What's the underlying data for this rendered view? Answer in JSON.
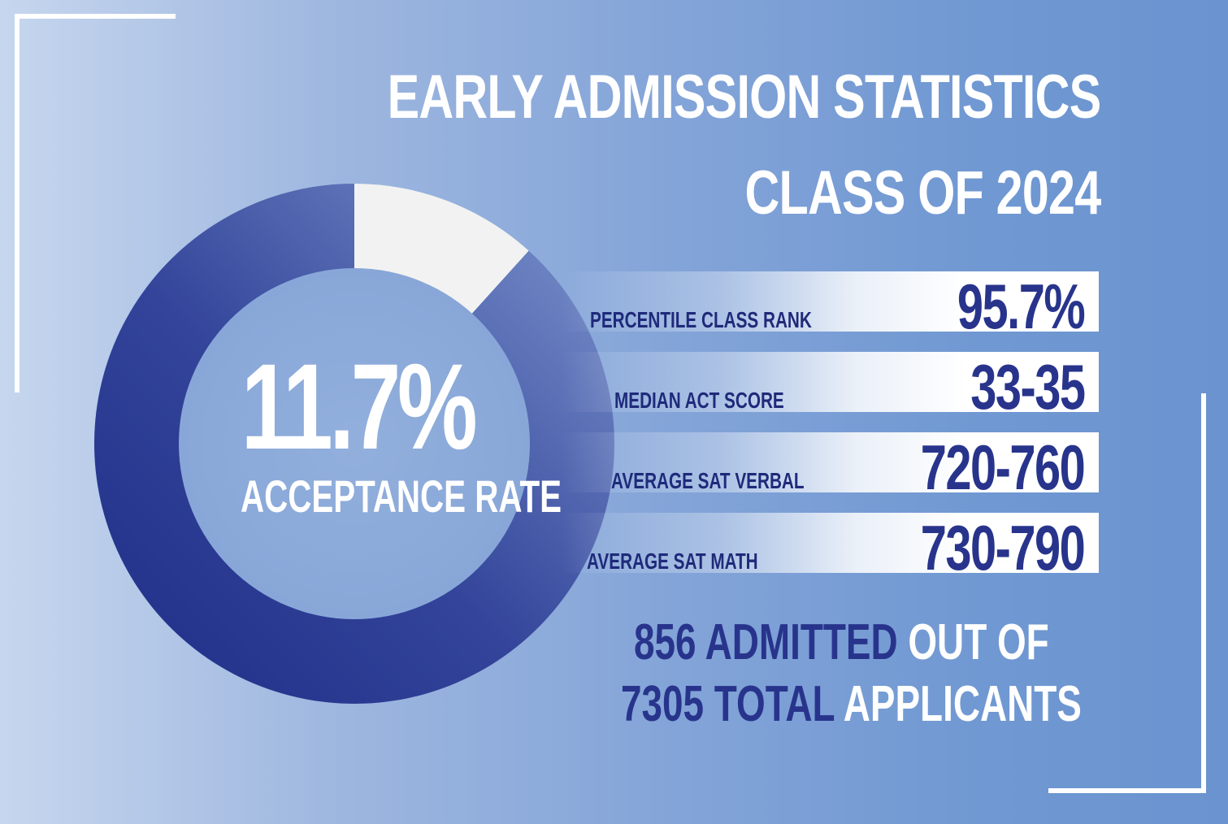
{
  "title": {
    "line1": "EARLY ADMISSION STATISTICS",
    "line2": "CLASS OF 2024"
  },
  "chart_data": {
    "type": "pie",
    "variant": "donut",
    "slices": [
      {
        "name": "",
        "value": 11.7,
        "color": "#f2f2f2"
      },
      {
        "name": "",
        "value": 88.3,
        "color": "#2a3990"
      }
    ],
    "center_value": "11.7%",
    "center_label": "ACCEPTANCE RATE"
  },
  "stats": [
    {
      "label": "PERCENTILE CLASS RANK",
      "value": "95.7%"
    },
    {
      "label": "MEDIAN ACT SCORE",
      "value": "33-35"
    },
    {
      "label": "AVERAGE SAT VERBAL",
      "value": "720-760"
    },
    {
      "label": "AVERAGE SAT MATH",
      "value": "730-790"
    }
  ],
  "summary": {
    "admitted_strong": "856 ADMITTED",
    "admitted_light": "OUT OF",
    "total_strong": "7305 TOTAL",
    "total_light": "APPLICANTS"
  },
  "colors": {
    "accent_dark": "#28348c",
    "ring_light": "#f2f2f2",
    "frame": "#ffffff"
  }
}
